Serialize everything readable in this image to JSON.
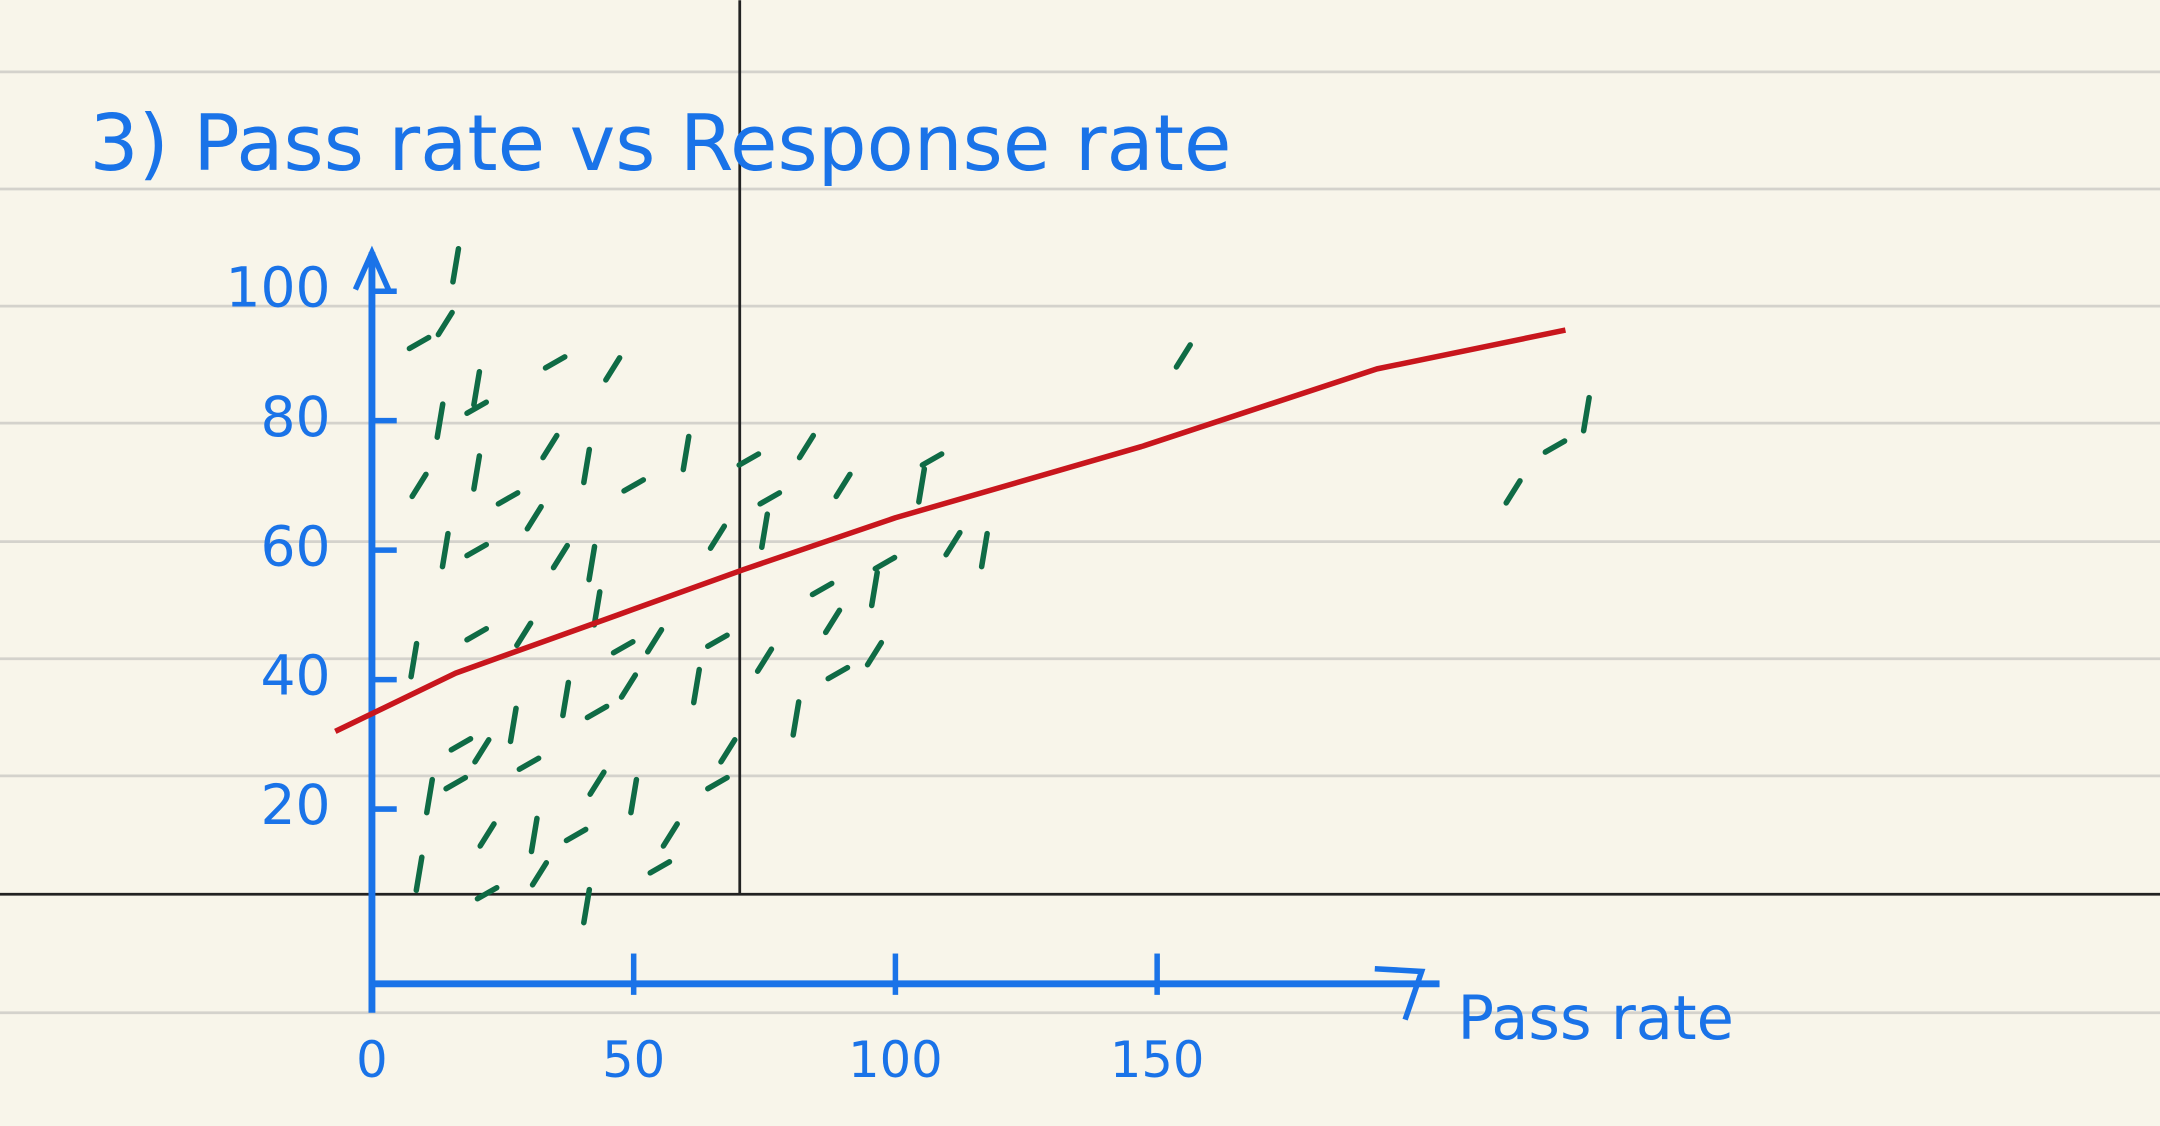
{
  "chart_data": {
    "type": "scatter",
    "title": "3) Pass rate vs Response rate",
    "x_label": "Pass rate",
    "xlim": [
      -7,
      235
    ],
    "xticks": [
      0,
      50,
      100,
      150
    ],
    "ylim": [
      -7,
      106
    ],
    "yticks": [
      20,
      40,
      60,
      80,
      100
    ],
    "series": [
      {
        "type": "scatter",
        "color": "#0f6b45",
        "x": [
          16,
          9,
          14,
          20,
          35,
          46,
          13,
          20,
          34,
          41,
          50,
          9,
          20,
          26,
          31,
          60,
          72,
          83,
          14,
          20,
          36,
          42,
          76,
          90,
          105,
          107,
          66,
          75,
          98,
          111,
          117,
          86,
          88,
          96,
          20,
          29,
          43,
          48,
          54,
          8,
          66,
          75,
          37,
          43,
          49,
          62,
          89,
          96,
          81,
          17,
          21,
          27,
          30,
          68,
          11,
          16,
          43,
          50,
          66,
          22,
          31,
          39,
          57,
          9,
          22,
          32,
          41,
          55,
          155,
          232,
          226,
          218
        ],
        "values": [
          104,
          92,
          95,
          85,
          89,
          88,
          80,
          82,
          76,
          73,
          70,
          70,
          72,
          68,
          65,
          75,
          74,
          76,
          60,
          60,
          59,
          58,
          68,
          70,
          70,
          74,
          62,
          63,
          58,
          61,
          60,
          54,
          49,
          54,
          47,
          47,
          51,
          45,
          46,
          43,
          46,
          43,
          37,
          35,
          39,
          39,
          41,
          44,
          34,
          30,
          29,
          33,
          27,
          29,
          22,
          24,
          24,
          22,
          24,
          16,
          16,
          16,
          16,
          10,
          7,
          10,
          5,
          11,
          90,
          81,
          76,
          69
        ]
      },
      {
        "type": "line",
        "color": "#c8161d",
        "x": [
          -7,
          16,
          47,
          71,
          100,
          147,
          192,
          228
        ],
        "values": [
          32,
          41,
          50,
          57,
          65,
          76,
          88,
          94
        ]
      }
    ]
  }
}
